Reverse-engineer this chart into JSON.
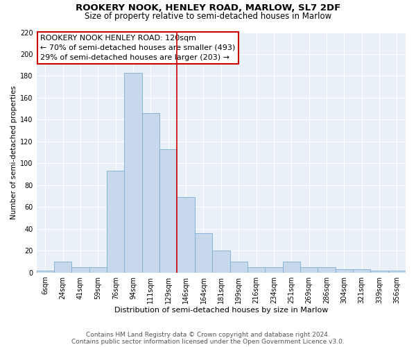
{
  "title": "ROOKERY NOOK, HENLEY ROAD, MARLOW, SL7 2DF",
  "subtitle": "Size of property relative to semi-detached houses in Marlow",
  "xlabel": "Distribution of semi-detached houses by size in Marlow",
  "ylabel": "Number of semi-detached properties",
  "categories": [
    "6sqm",
    "24sqm",
    "41sqm",
    "59sqm",
    "76sqm",
    "94sqm",
    "111sqm",
    "129sqm",
    "146sqm",
    "164sqm",
    "181sqm",
    "199sqm",
    "216sqm",
    "234sqm",
    "251sqm",
    "269sqm",
    "286sqm",
    "304sqm",
    "321sqm",
    "339sqm",
    "356sqm"
  ],
  "values": [
    2,
    10,
    5,
    5,
    93,
    183,
    146,
    113,
    69,
    36,
    20,
    10,
    5,
    5,
    10,
    5,
    5,
    3,
    3,
    2,
    2
  ],
  "bar_color": "#c8d8ec",
  "bar_edge_color": "#7aaed0",
  "vline_position": 7.5,
  "vline_color": "#cc0000",
  "ylim": [
    0,
    220
  ],
  "yticks": [
    0,
    20,
    40,
    60,
    80,
    100,
    120,
    140,
    160,
    180,
    200,
    220
  ],
  "annotation_title": "ROOKERY NOOK HENLEY ROAD: 120sqm",
  "annotation_line1": "← 70% of semi-detached houses are smaller (493)",
  "annotation_line2": "29% of semi-detached houses are larger (203) →",
  "annotation_box_edgecolor": "#cc0000",
  "grid_color": "#d8e4f0",
  "bg_color": "#eaf0f8",
  "footer1": "Contains HM Land Registry data © Crown copyright and database right 2024.",
  "footer2": "Contains public sector information licensed under the Open Government Licence v3.0.",
  "title_fontsize": 9.5,
  "subtitle_fontsize": 8.5,
  "xlabel_fontsize": 8,
  "ylabel_fontsize": 7.5,
  "tick_fontsize": 7,
  "annot_fontsize": 8,
  "footer_fontsize": 6.5
}
